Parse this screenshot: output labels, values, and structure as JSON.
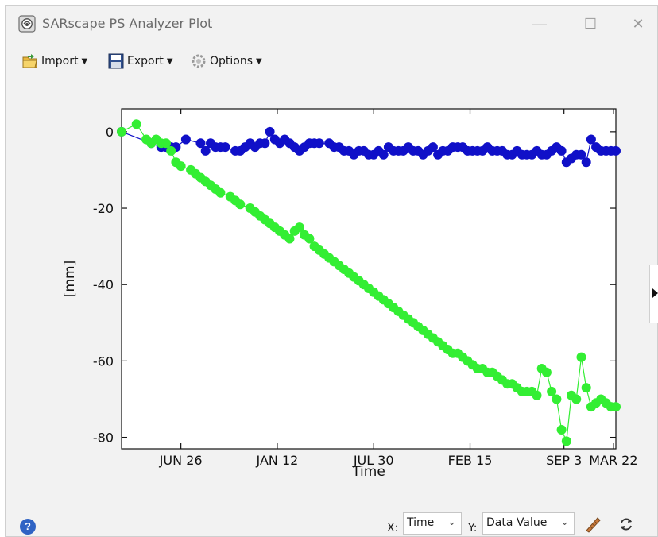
{
  "window": {
    "title": "SARscape PS Analyzer Plot",
    "controls": [
      "—",
      "☐",
      "✕"
    ]
  },
  "toolbar": {
    "import_label": "Import",
    "export_label": "Export",
    "options_label": "Options",
    "icons": [
      "folder-open-icon",
      "floppy-disk-icon",
      "gear-icon"
    ]
  },
  "bottom": {
    "x_label": "X:",
    "x_value": "Time",
    "y_label": "Y:",
    "y_value": "Data Value",
    "icons": [
      "help-icon",
      "ruler-icon",
      "refresh-icon"
    ]
  },
  "chart_data": {
    "type": "scatter",
    "xlabel": "Time",
    "ylabel": "[mm]",
    "x_ticks": [
      "JUN 26",
      "JAN 12",
      "JUL 30",
      "FEB 15",
      "SEP 3",
      "MAR 22"
    ],
    "y_ticks": [
      0,
      -20,
      -40,
      -60,
      -80
    ],
    "ylim": [
      -83,
      6
    ],
    "grid": false,
    "series": [
      {
        "color": "#1010c8",
        "x": [
          0,
          6,
          8,
          9,
          10,
          11,
          13,
          16,
          17,
          18,
          19,
          20,
          21,
          23,
          24,
          25,
          26,
          27,
          28,
          29,
          30,
          31,
          32,
          33,
          34,
          35,
          36,
          37,
          38,
          39,
          40,
          42,
          43,
          44,
          45,
          46,
          47,
          48,
          49,
          50,
          51,
          52,
          53,
          54,
          55,
          56,
          57,
          58,
          59,
          60,
          61,
          62,
          63,
          64,
          65,
          66,
          67,
          68,
          69,
          70,
          71,
          72,
          73,
          74,
          75,
          76,
          77,
          78,
          79,
          80,
          81,
          82,
          83,
          84,
          85,
          86,
          87,
          88,
          89,
          90,
          91,
          92,
          93,
          94,
          95,
          96,
          97,
          98,
          99,
          100
        ],
        "y": [
          0,
          -3,
          -4,
          -4,
          -4,
          -4,
          -2,
          -3,
          -5,
          -3,
          -4,
          -4,
          -4,
          -5,
          -5,
          -4,
          -3,
          -4,
          -3,
          -3,
          0,
          -2,
          -3,
          -2,
          -3,
          -4,
          -5,
          -4,
          -3,
          -3,
          -3,
          -3,
          -4,
          -4,
          -5,
          -5,
          -6,
          -5,
          -5,
          -6,
          -6,
          -5,
          -6,
          -4,
          -5,
          -5,
          -5,
          -4,
          -5,
          -5,
          -6,
          -5,
          -4,
          -6,
          -5,
          -5,
          -4,
          -4,
          -4,
          -5,
          -5,
          -5,
          -5,
          -4,
          -5,
          -5,
          -5,
          -6,
          -6,
          -5,
          -6,
          -6,
          -6,
          -5,
          -6,
          -6,
          -5,
          -4,
          -5,
          -8,
          -7,
          -6,
          -6,
          -8,
          -2,
          -4,
          -5,
          -5,
          -5,
          -5
        ],
        "values_note": ""
      },
      {
        "color": "#33ee33",
        "x": [
          0,
          3,
          5,
          6,
          7,
          8,
          9,
          10,
          11,
          12,
          14,
          15,
          16,
          17,
          18,
          19,
          20,
          22,
          23,
          24,
          26,
          27,
          28,
          29,
          30,
          31,
          32,
          33,
          34,
          35,
          36,
          37,
          38,
          39,
          40,
          41,
          42,
          43,
          44,
          45,
          46,
          47,
          48,
          49,
          50,
          51,
          52,
          53,
          54,
          55,
          56,
          57,
          58,
          59,
          60,
          61,
          62,
          63,
          64,
          65,
          66,
          67,
          68,
          69,
          70,
          71,
          72,
          73,
          74,
          75,
          76,
          77,
          78,
          79,
          80,
          81,
          82,
          83,
          84,
          85,
          86,
          87,
          88,
          89,
          90,
          91,
          92,
          93,
          94,
          95,
          96,
          97,
          98,
          99,
          100
        ],
        "y": [
          0,
          2,
          -2,
          -3,
          -2,
          -3,
          -3,
          -5,
          -8,
          -9,
          -10,
          -11,
          -12,
          -13,
          -14,
          -15,
          -16,
          -17,
          -18,
          -19,
          -20,
          -21,
          -22,
          -23,
          -24,
          -25,
          -26,
          -27,
          -28,
          -26,
          -25,
          -27,
          -28,
          -30,
          -31,
          -32,
          -33,
          -34,
          -35,
          -36,
          -37,
          -38,
          -39,
          -40,
          -41,
          -42,
          -43,
          -44,
          -45,
          -46,
          -47,
          -48,
          -49,
          -50,
          -51,
          -52,
          -53,
          -54,
          -55,
          -56,
          -57,
          -58,
          -58,
          -59,
          -60,
          -61,
          -62,
          -62,
          -63,
          -63,
          -64,
          -65,
          -66,
          -66,
          -67,
          -68,
          -68,
          -68,
          -69,
          -62,
          -63,
          -68,
          -70,
          -78,
          -81,
          -69,
          -70,
          -59,
          -67,
          -72,
          -71,
          -70,
          -71,
          -72,
          -72
        ],
        "values_note": ""
      }
    ]
  }
}
